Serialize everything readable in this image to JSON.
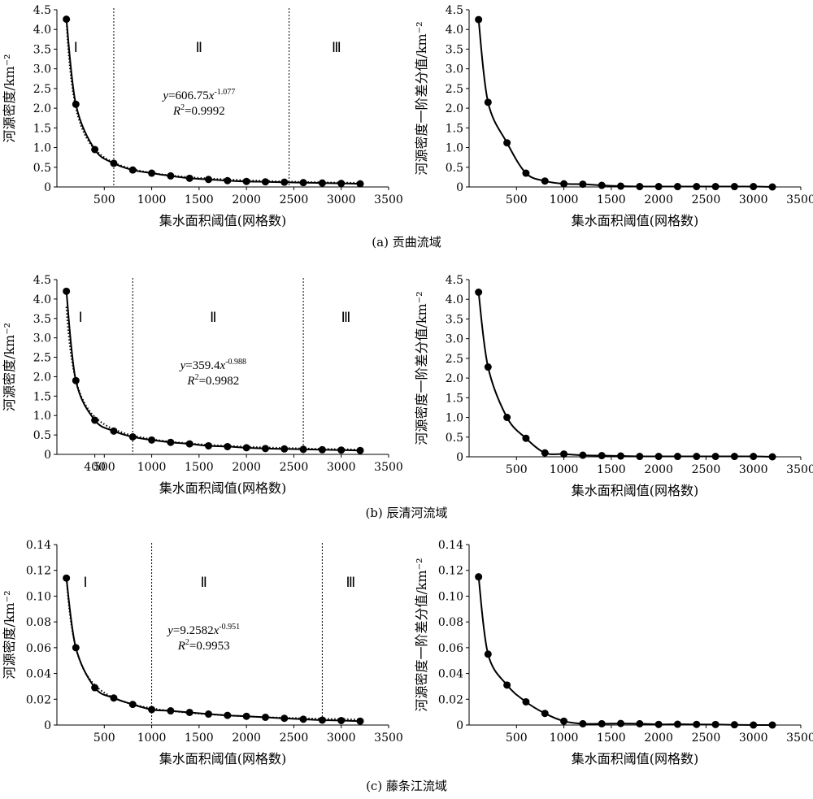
{
  "captions": [
    "(a) 贡曲流域",
    "(b) 辰清河流域",
    "(c) 藤条江流域"
  ],
  "chart_data": [
    {
      "type": "line",
      "xlabel": "集水面积阈值(网格数)",
      "ylabel": "河源密度/km⁻²",
      "xlim": [
        0,
        3500
      ],
      "xticks": [
        500,
        1000,
        1500,
        2000,
        2500,
        3000,
        3500
      ],
      "ylim": [
        0,
        4.5
      ],
      "yticks": [
        "0",
        "0.5",
        "1.0",
        "1.5",
        "2.0",
        "2.5",
        "3.0",
        "3.5",
        "4.0",
        "4.5"
      ],
      "x": [
        100,
        200,
        400,
        600,
        800,
        1000,
        1200,
        1400,
        1600,
        1800,
        2000,
        2200,
        2400,
        2600,
        2800,
        3000,
        3200
      ],
      "values": [
        4.26,
        2.1,
        0.95,
        0.6,
        0.43,
        0.35,
        0.28,
        0.22,
        0.19,
        0.16,
        0.14,
        0.13,
        0.12,
        0.11,
        0.1,
        0.09,
        0.08
      ],
      "fit": {
        "a": 606.75,
        "b": -1.077
      },
      "equation": {
        "y_label": "y",
        "eq_text": "=606.75",
        "x_label": "x",
        "exponent": "-1.077",
        "r_label": "R",
        "r_sup": "2",
        "r_value": "=0.9992"
      },
      "dividers": [
        600,
        2450
      ],
      "zones": [
        "Ⅰ",
        "Ⅱ",
        "Ⅲ"
      ],
      "zone_x": [
        200,
        1500,
        2950
      ]
    },
    {
      "type": "line",
      "xlabel": "集水面积阈值(网格数)",
      "ylabel": "河源密度一阶差分值/km⁻²",
      "xlim": [
        0,
        3500
      ],
      "xticks": [
        500,
        1000,
        1500,
        2000,
        2500,
        3000,
        3500
      ],
      "ylim": [
        0,
        4.5
      ],
      "yticks": [
        "0",
        "0.5",
        "1.0",
        "1.5",
        "2.0",
        "2.5",
        "3.0",
        "3.5",
        "4.0",
        "4.5"
      ],
      "x": [
        100,
        200,
        400,
        600,
        800,
        1000,
        1200,
        1400,
        1600,
        1800,
        2000,
        2200,
        2400,
        2600,
        2800,
        3000,
        3200
      ],
      "values": [
        4.25,
        2.15,
        1.12,
        0.35,
        0.15,
        0.08,
        0.07,
        0.04,
        0.02,
        0.01,
        0.01,
        0.01,
        0.01,
        0.01,
        0.01,
        0.01,
        0.0
      ]
    },
    {
      "type": "line",
      "xlabel": "集水面积阈值(网格数)",
      "ylabel": "河源密度/km⁻²",
      "xlim": [
        0,
        3500
      ],
      "xticks": [
        400,
        500,
        1000,
        1500,
        2000,
        2500,
        3000,
        3500
      ],
      "ylim": [
        0,
        4.5
      ],
      "yticks": [
        "0",
        "0.5",
        "1.0",
        "1.5",
        "2.0",
        "2.5",
        "3.0",
        "3.5",
        "4.0",
        "4.5"
      ],
      "x": [
        100,
        200,
        400,
        600,
        800,
        1000,
        1200,
        1400,
        1600,
        1800,
        2000,
        2200,
        2400,
        2600,
        2800,
        3000,
        3200
      ],
      "values": [
        4.2,
        1.9,
        0.88,
        0.6,
        0.45,
        0.37,
        0.31,
        0.27,
        0.22,
        0.2,
        0.17,
        0.15,
        0.14,
        0.13,
        0.12,
        0.11,
        0.1
      ],
      "fit": {
        "a": 359.4,
        "b": -0.988
      },
      "equation": {
        "y_label": "y",
        "eq_text": "=359.4",
        "x_label": "x",
        "exponent": "-0.988",
        "r_label": "R",
        "r_sup": "2",
        "r_value": "=0.9982"
      },
      "dividers": [
        800,
        2600
      ],
      "zones": [
        "Ⅰ",
        "Ⅱ",
        "Ⅲ"
      ],
      "zone_x": [
        250,
        1650,
        3050
      ]
    },
    {
      "type": "line",
      "xlabel": "集水面积阈值(网格数)",
      "ylabel": "河源密度一阶差分值/km⁻²",
      "xlim": [
        0,
        3500
      ],
      "xticks": [
        500,
        1000,
        1500,
        2000,
        2500,
        3000,
        3500
      ],
      "ylim": [
        0,
        4.5
      ],
      "yticks": [
        "0",
        "0.5",
        "1.0",
        "1.5",
        "2.0",
        "2.5",
        "3.0",
        "3.5",
        "4.0",
        "4.5"
      ],
      "x": [
        100,
        200,
        400,
        600,
        800,
        1000,
        1200,
        1400,
        1600,
        1800,
        2000,
        2200,
        2400,
        2600,
        2800,
        3000,
        3200
      ],
      "values": [
        4.18,
        2.28,
        1.0,
        0.47,
        0.1,
        0.07,
        0.04,
        0.03,
        0.02,
        0.01,
        0.01,
        0.01,
        0.01,
        0.01,
        0.01,
        0.01,
        0.0
      ]
    },
    {
      "type": "line",
      "xlabel": "集水面积阈值(网格数)",
      "ylabel": "河源密度/km⁻²",
      "xlim": [
        0,
        3500
      ],
      "xticks": [
        500,
        1000,
        1500,
        2000,
        2500,
        3000,
        3500
      ],
      "ylim": [
        0,
        0.14
      ],
      "yticks": [
        "0",
        "0.02",
        "0.04",
        "0.06",
        "0.08",
        "0.10",
        "0.12",
        "0.14"
      ],
      "x": [
        100,
        200,
        400,
        600,
        800,
        1000,
        1200,
        1400,
        1600,
        1800,
        2000,
        2200,
        2400,
        2600,
        2800,
        3000,
        3200
      ],
      "values": [
        0.114,
        0.06,
        0.029,
        0.021,
        0.016,
        0.012,
        0.011,
        0.0098,
        0.0085,
        0.0075,
        0.0068,
        0.006,
        0.0052,
        0.0045,
        0.0038,
        0.0035,
        0.003
      ],
      "fit": {
        "a": 9.2582,
        "b": -0.951
      },
      "equation": {
        "y_label": "y",
        "eq_text": "=9.2582",
        "x_label": "x",
        "exponent": "-0.951",
        "r_label": "R",
        "r_sup": "2",
        "r_value": "=0.9953"
      },
      "dividers": [
        1000,
        2800
      ],
      "zones": [
        "Ⅰ",
        "Ⅱ",
        "Ⅲ"
      ],
      "zone_x": [
        300,
        1550,
        3100
      ]
    },
    {
      "type": "line",
      "xlabel": "集水面积阈值(网格数)",
      "ylabel": "河源密度一阶差分值/km⁻²",
      "xlim": [
        0,
        3500
      ],
      "xticks": [
        500,
        1000,
        1500,
        2000,
        2500,
        3000,
        3500
      ],
      "ylim": [
        0,
        0.14
      ],
      "yticks": [
        "0",
        "0.02",
        "0.04",
        "0.06",
        "0.08",
        "0.10",
        "0.12",
        "0.14"
      ],
      "x": [
        100,
        200,
        400,
        600,
        800,
        1000,
        1200,
        1400,
        1600,
        1800,
        2000,
        2200,
        2400,
        2600,
        2800,
        3000,
        3200
      ],
      "values": [
        0.115,
        0.055,
        0.031,
        0.018,
        0.009,
        0.003,
        0.001,
        0.001,
        0.0012,
        0.001,
        0.0005,
        0.0006,
        0.0005,
        0.0004,
        0.0002,
        0.0,
        0.0
      ]
    }
  ]
}
